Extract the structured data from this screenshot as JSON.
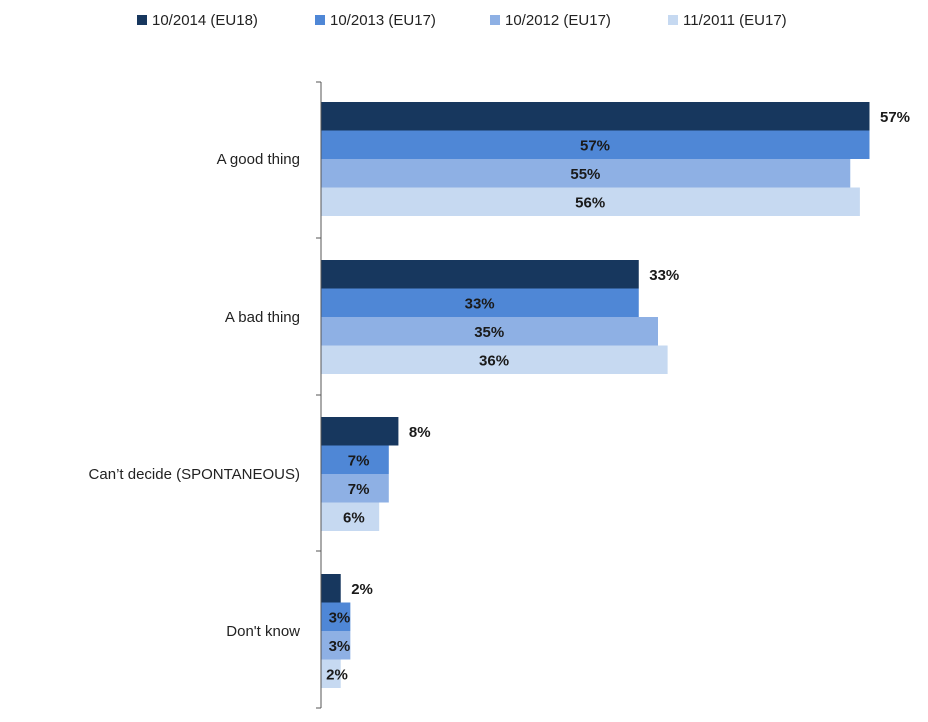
{
  "chart_data": {
    "type": "bar",
    "orientation": "horizontal",
    "categories": [
      "A good thing",
      "A bad thing",
      "Can’t decide (SPONTANEOUS)",
      "Don't know"
    ],
    "series": [
      {
        "name": "10/2014 (EU18)",
        "color": "#17375e",
        "values": [
          57,
          33,
          8,
          2
        ]
      },
      {
        "name": "10/2013 (EU17)",
        "color": "#4f87d6",
        "values": [
          57,
          33,
          7,
          3
        ]
      },
      {
        "name": "10/2012 (EU17)",
        "color": "#8eb0e4",
        "values": [
          55,
          35,
          7,
          3
        ]
      },
      {
        "name": "11/2011 (EU17)",
        "color": "#c6d9f1",
        "values": [
          56,
          36,
          6,
          2
        ]
      }
    ],
    "value_suffix": "%",
    "xlim": [
      0,
      57
    ],
    "grid": false,
    "legend_position": "top"
  }
}
